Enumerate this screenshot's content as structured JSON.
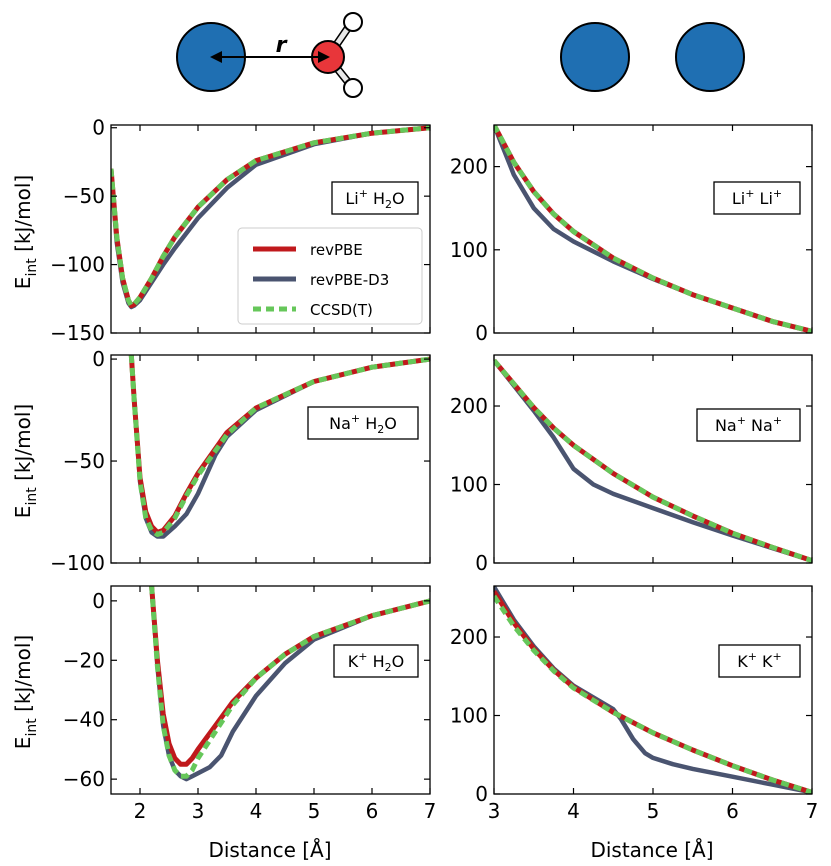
{
  "figure": {
    "schematic": {
      "distance_symbol": "r",
      "ion_color": "#1f6fb2",
      "oxygen_color": "#e8363a",
      "hydrogen_color": "#ffffff"
    },
    "xlabel": "Distance [Å]",
    "ylabel_main": "E",
    "ylabel_sub": "int",
    "ylabel_unit": " [kJ/mol]"
  },
  "legend": {
    "entries": [
      {
        "name": "revPBE",
        "color": "#c0191c",
        "style": "solid"
      },
      {
        "name": "revPBE-D3",
        "color": "#4a5470",
        "style": "solid"
      },
      {
        "name": "CCSD(T)",
        "color": "#66c75a",
        "style": "dashed"
      }
    ]
  },
  "chart_data": [
    {
      "type": "line",
      "label_main": "Li",
      "label_sup": "+",
      "label_partner": " H",
      "label_sub": "2",
      "label_end": "O",
      "xlim": [
        1.5,
        7
      ],
      "ylim": [
        -150,
        2
      ],
      "xticks": [
        2,
        3,
        4,
        5,
        6,
        7
      ],
      "yticks": [
        0,
        -50,
        -100,
        -150
      ],
      "ytick_labels": [
        "0",
        "−50",
        "−100",
        "−150"
      ],
      "series": [
        {
          "name": "revPBE",
          "x": [
            1.5,
            1.6,
            1.7,
            1.8,
            1.85,
            1.9,
            2.0,
            2.2,
            2.4,
            2.6,
            3.0,
            3.5,
            4.0,
            5.0,
            6.0,
            7.0
          ],
          "y": [
            -30,
            -80,
            -110,
            -126,
            -130,
            -129,
            -124,
            -110,
            -94,
            -80,
            -58,
            -38,
            -24,
            -11,
            -4,
            0
          ]
        },
        {
          "name": "revPBE-D3",
          "x": [
            1.5,
            1.6,
            1.7,
            1.8,
            1.85,
            1.9,
            2.0,
            2.2,
            2.4,
            2.6,
            3.0,
            3.5,
            4.0,
            5.0,
            6.0,
            7.0
          ],
          "y": [
            -33,
            -84,
            -113,
            -128,
            -131,
            -130,
            -126,
            -113,
            -100,
            -88,
            -66,
            -44,
            -27,
            -12,
            -4,
            0
          ]
        },
        {
          "name": "CCSD(T)",
          "x": [
            1.5,
            1.6,
            1.7,
            1.8,
            1.85,
            1.9,
            2.0,
            2.2,
            2.4,
            2.6,
            3.0,
            3.5,
            4.0,
            5.0,
            6.0,
            7.0
          ],
          "y": [
            -30,
            -80,
            -110,
            -126,
            -130,
            -129,
            -124,
            -110,
            -94,
            -80,
            -58,
            -38,
            -24,
            -11,
            -4,
            0
          ]
        }
      ]
    },
    {
      "type": "line",
      "label_main": "Li",
      "label_sup": "+",
      "label_partner": " Li",
      "label_sub": "",
      "label_end": "",
      "label_sup2": "+",
      "xlim": [
        3,
        7
      ],
      "ylim": [
        0,
        250
      ],
      "xticks": [
        3,
        4,
        5,
        6,
        7
      ],
      "yticks": [
        0,
        100,
        200
      ],
      "ytick_labels": [
        "0",
        "100",
        "200"
      ],
      "series": [
        {
          "name": "revPBE",
          "x": [
            3.0,
            3.25,
            3.5,
            3.75,
            4.0,
            4.5,
            5.0,
            5.5,
            6.0,
            6.5,
            7.0
          ],
          "y": [
            250,
            205,
            170,
            143,
            122,
            90,
            66,
            46,
            30,
            14,
            2
          ]
        },
        {
          "name": "revPBE-D3",
          "x": [
            3.0,
            3.25,
            3.5,
            3.75,
            4.0,
            4.5,
            5.0,
            5.5,
            6.0,
            6.5,
            7.0
          ],
          "y": [
            250,
            190,
            150,
            125,
            110,
            86,
            65,
            46,
            30,
            14,
            2
          ]
        },
        {
          "name": "CCSD(T)",
          "x": [
            3.0,
            3.25,
            3.5,
            3.75,
            4.0,
            4.5,
            5.0,
            5.5,
            6.0,
            6.5,
            7.0
          ],
          "y": [
            250,
            205,
            170,
            143,
            122,
            90,
            66,
            46,
            30,
            14,
            2
          ]
        }
      ]
    },
    {
      "type": "line",
      "label_main": "Na",
      "label_sup": "+",
      "label_partner": " H",
      "label_sub": "2",
      "label_end": "O",
      "xlim": [
        1.5,
        7
      ],
      "ylim": [
        -100,
        2
      ],
      "xticks": [
        2,
        3,
        4,
        5,
        6,
        7
      ],
      "yticks": [
        0,
        -50,
        -100
      ],
      "ytick_labels": [
        "0",
        "−50",
        "−100"
      ],
      "series": [
        {
          "name": "revPBE",
          "x": [
            1.85,
            1.9,
            2.0,
            2.1,
            2.2,
            2.3,
            2.4,
            2.6,
            2.8,
            3.0,
            3.5,
            4.0,
            5.0,
            6.0,
            7.0
          ],
          "y": [
            2,
            -20,
            -58,
            -75,
            -82,
            -85,
            -84,
            -77,
            -66,
            -56,
            -36,
            -24,
            -11,
            -4,
            0
          ]
        },
        {
          "name": "revPBE-D3",
          "x": [
            1.85,
            1.9,
            2.0,
            2.1,
            2.2,
            2.3,
            2.4,
            2.6,
            2.8,
            3.0,
            3.3,
            3.5,
            4.0,
            5.0,
            6.0,
            7.0
          ],
          "y": [
            2,
            -20,
            -60,
            -78,
            -85,
            -87,
            -87,
            -82,
            -76,
            -66,
            -47,
            -38,
            -25,
            -11,
            -4,
            0
          ]
        },
        {
          "name": "CCSD(T)",
          "x": [
            1.85,
            1.9,
            2.0,
            2.1,
            2.2,
            2.3,
            2.4,
            2.6,
            2.8,
            3.0,
            3.5,
            4.0,
            5.0,
            6.0,
            7.0
          ],
          "y": [
            2,
            -20,
            -60,
            -78,
            -84,
            -86,
            -85,
            -78,
            -67,
            -57,
            -37,
            -24,
            -11,
            -4,
            0
          ]
        }
      ]
    },
    {
      "type": "line",
      "label_main": "Na",
      "label_sup": "+",
      "label_partner": " Na",
      "label_sub": "",
      "label_end": "",
      "label_sup2": "+",
      "xlim": [
        3,
        7
      ],
      "ylim": [
        0,
        265
      ],
      "xticks": [
        3,
        4,
        5,
        6,
        7
      ],
      "yticks": [
        0,
        100,
        200
      ],
      "ytick_labels": [
        "0",
        "100",
        "200"
      ],
      "series": [
        {
          "name": "revPBE",
          "x": [
            3.0,
            3.25,
            3.5,
            3.75,
            4.0,
            4.5,
            5.0,
            5.5,
            6.0,
            6.5,
            7.0
          ],
          "y": [
            258,
            228,
            198,
            172,
            150,
            114,
            84,
            60,
            38,
            20,
            3
          ]
        },
        {
          "name": "revPBE-D3",
          "x": [
            3.0,
            3.25,
            3.5,
            3.75,
            4.0,
            4.25,
            4.5,
            5.0,
            5.5,
            6.0,
            6.5,
            7.0
          ],
          "y": [
            258,
            226,
            194,
            160,
            120,
            100,
            88,
            70,
            52,
            35,
            19,
            3
          ]
        },
        {
          "name": "CCSD(T)",
          "x": [
            3.0,
            3.25,
            3.5,
            3.75,
            4.0,
            4.5,
            5.0,
            5.5,
            6.0,
            6.5,
            7.0
          ],
          "y": [
            258,
            228,
            198,
            172,
            150,
            114,
            84,
            60,
            38,
            20,
            3
          ]
        }
      ]
    },
    {
      "type": "line",
      "label_main": "K",
      "label_sup": "+",
      "label_partner": " H",
      "label_sub": "2",
      "label_end": "O",
      "xlim": [
        1.5,
        7
      ],
      "ylim": [
        -65,
        5
      ],
      "xticks": [
        2,
        3,
        4,
        5,
        6,
        7
      ],
      "yticks": [
        0,
        -20,
        -40,
        -60
      ],
      "ytick_labels": [
        "0",
        "−20",
        "−40",
        "−60"
      ],
      "series": [
        {
          "name": "revPBE",
          "x": [
            2.2,
            2.3,
            2.4,
            2.5,
            2.6,
            2.7,
            2.8,
            2.9,
            3.0,
            3.3,
            3.6,
            4.0,
            4.5,
            5.0,
            6.0,
            7.0
          ],
          "y": [
            5,
            -20,
            -38,
            -48,
            -53,
            -55,
            -55,
            -53,
            -50,
            -42,
            -34,
            -26,
            -18,
            -12,
            -5,
            0
          ]
        },
        {
          "name": "revPBE-D3",
          "x": [
            2.2,
            2.3,
            2.4,
            2.5,
            2.6,
            2.7,
            2.8,
            2.9,
            3.0,
            3.2,
            3.4,
            3.6,
            4.0,
            4.5,
            5.0,
            6.0,
            7.0
          ],
          "y": [
            5,
            -22,
            -42,
            -52,
            -57,
            -59,
            -60,
            -59,
            -58,
            -56,
            -52,
            -44,
            -32,
            -21,
            -13,
            -5,
            0
          ]
        },
        {
          "name": "CCSD(T)",
          "x": [
            2.2,
            2.3,
            2.4,
            2.5,
            2.6,
            2.7,
            2.8,
            2.9,
            3.0,
            3.3,
            3.6,
            4.0,
            4.5,
            5.0,
            6.0,
            7.0
          ],
          "y": [
            5,
            -22,
            -42,
            -52,
            -57,
            -59,
            -59,
            -57,
            -53,
            -44,
            -35,
            -26,
            -18,
            -12,
            -5,
            0
          ]
        }
      ]
    },
    {
      "type": "line",
      "label_main": "K",
      "label_sup": "+",
      "label_partner": " K",
      "label_sub": "",
      "label_end": "",
      "label_sup2": "+",
      "xlim": [
        3,
        7
      ],
      "ylim": [
        0,
        265
      ],
      "xticks": [
        3,
        4,
        5,
        6,
        7
      ],
      "yticks": [
        0,
        100,
        200
      ],
      "ytick_labels": [
        "0",
        "100",
        "200"
      ],
      "series": [
        {
          "name": "revPBE",
          "x": [
            3.0,
            3.25,
            3.5,
            3.75,
            4.0,
            4.5,
            5.0,
            5.5,
            6.0,
            6.5,
            7.0
          ],
          "y": [
            258,
            218,
            185,
            158,
            136,
            104,
            78,
            56,
            36,
            18,
            2
          ]
        },
        {
          "name": "revPBE-D3",
          "x": [
            3.0,
            3.25,
            3.5,
            3.75,
            4.0,
            4.5,
            4.6,
            4.75,
            4.9,
            5.0,
            5.25,
            5.5,
            6.0,
            6.5,
            7.0
          ],
          "y": [
            264,
            222,
            188,
            160,
            138,
            108,
            95,
            70,
            52,
            46,
            38,
            32,
            22,
            12,
            2
          ]
        },
        {
          "name": "CCSD(T)",
          "x": [
            3.0,
            3.25,
            3.5,
            3.75,
            4.0,
            4.5,
            5.0,
            5.5,
            6.0,
            6.5,
            7.0
          ],
          "y": [
            252,
            214,
            183,
            157,
            135,
            104,
            78,
            56,
            36,
            18,
            2
          ]
        }
      ]
    }
  ]
}
